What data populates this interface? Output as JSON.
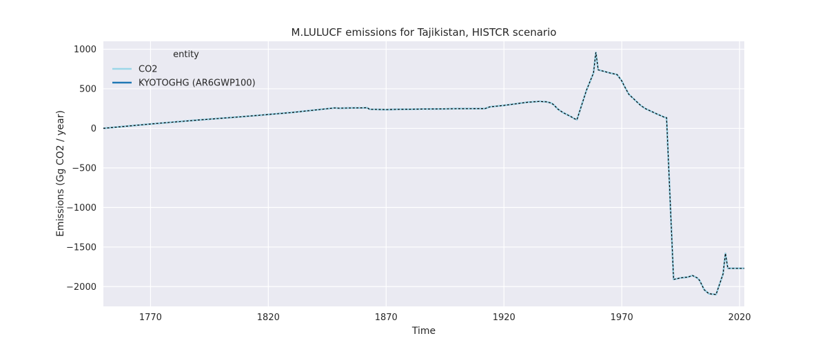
{
  "chart_data": {
    "type": "line",
    "title": "M.LULUCF emissions for Tajikistan, HISTCR scenario",
    "xlabel": "Time",
    "ylabel": "Emissions (Gg CO2 / year)",
    "xlim": [
      1750,
      2022
    ],
    "ylim": [
      -2250,
      1100
    ],
    "xticks": [
      1770,
      1820,
      1870,
      1920,
      1970,
      2020
    ],
    "yticks": [
      1000,
      500,
      0,
      -500,
      -1000,
      -1500,
      -2000
    ],
    "grid": true,
    "legend": {
      "title": "entity",
      "placement": "top-left"
    },
    "colors": {
      "background": "#eaeaf2",
      "grid": "#ffffff",
      "co2": "#9bd7e8",
      "kyoto": "#1f77b4",
      "overlay": "#000000"
    },
    "series": [
      {
        "name": "CO2",
        "x": [
          1750,
          1770,
          1790,
          1810,
          1830,
          1848,
          1850,
          1862,
          1863,
          1870,
          1880,
          1900,
          1912,
          1914,
          1920,
          1925,
          1930,
          1935,
          1938,
          1940,
          1941,
          1943,
          1945,
          1948,
          1950,
          1951,
          1955,
          1958,
          1959,
          1960,
          1965,
          1968,
          1970,
          1971,
          1973,
          1978,
          1980,
          1985,
          1987,
          1988,
          1989,
          1992,
          1995,
          1998,
          2000,
          2002,
          2003,
          2005,
          2007,
          2010,
          2013,
          2014,
          2015,
          2020,
          2022
        ],
        "values": [
          0,
          55,
          105,
          150,
          200,
          258,
          255,
          260,
          240,
          238,
          242,
          248,
          250,
          272,
          290,
          310,
          330,
          340,
          335,
          320,
          300,
          240,
          200,
          155,
          120,
          110,
          480,
          700,
          960,
          740,
          700,
          680,
          600,
          540,
          430,
          290,
          250,
          180,
          155,
          140,
          135,
          -1910,
          -1890,
          -1880,
          -1860,
          -1890,
          -1920,
          -2040,
          -2090,
          -2100,
          -1840,
          -1580,
          -1770,
          -1770,
          -1770
        ]
      },
      {
        "name": "KYOTOGHG (AR6GWP100)",
        "x": [
          1750,
          1770,
          1790,
          1810,
          1830,
          1848,
          1850,
          1862,
          1863,
          1870,
          1880,
          1900,
          1912,
          1914,
          1920,
          1925,
          1930,
          1935,
          1938,
          1940,
          1941,
          1943,
          1945,
          1948,
          1950,
          1951,
          1955,
          1958,
          1959,
          1960,
          1965,
          1968,
          1970,
          1971,
          1973,
          1978,
          1980,
          1985,
          1987,
          1988,
          1989,
          1992,
          1995,
          1998,
          2000,
          2002,
          2003,
          2005,
          2007,
          2010,
          2013,
          2014,
          2015,
          2020,
          2022
        ],
        "values": [
          0,
          55,
          105,
          150,
          200,
          258,
          255,
          260,
          240,
          238,
          242,
          248,
          250,
          272,
          290,
          310,
          330,
          340,
          335,
          320,
          300,
          240,
          200,
          155,
          120,
          110,
          480,
          700,
          960,
          740,
          700,
          680,
          600,
          540,
          430,
          290,
          250,
          180,
          155,
          140,
          135,
          -1910,
          -1890,
          -1880,
          -1860,
          -1890,
          -1920,
          -2040,
          -2090,
          -2100,
          -1840,
          -1580,
          -1770,
          -1770,
          -1770
        ]
      }
    ]
  }
}
